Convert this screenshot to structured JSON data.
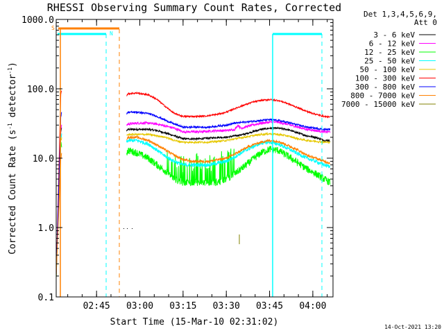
{
  "chart_data": {
    "type": "line",
    "title": "RHESSI Observing Summary Count Rates, Corrected",
    "xlabel": "Start Time (15-Mar-10 02:31:02)",
    "ylabel_main": "Corrected Count Rate (s",
    "ylabel_sup1": "-1",
    "ylabel_mid": " detector",
    "ylabel_sup2": "-1",
    "ylabel_end": ")",
    "y_scale": "log",
    "ylim": [
      0.1,
      1000
    ],
    "y_ticks": [
      {
        "value": 1000,
        "label": "1000.0"
      },
      {
        "value": 100,
        "label": "100.0"
      },
      {
        "value": 10,
        "label": "10.0"
      },
      {
        "value": 1,
        "label": "1.0"
      },
      {
        "value": 0.1,
        "label": "0.1"
      }
    ],
    "xlim_minutes": [
      0,
      96
    ],
    "x_ticks": [
      {
        "minute": 14,
        "label": "02:45"
      },
      {
        "minute": 29,
        "label": "03:00"
      },
      {
        "minute": 44,
        "label": "03:15"
      },
      {
        "minute": 59,
        "label": "03:30"
      },
      {
        "minute": 74,
        "label": "03:45"
      },
      {
        "minute": 89,
        "label": "04:00"
      }
    ],
    "legend_header": [
      "Det 1,3,4,5,6,9,",
      "Att 0"
    ],
    "legend_position": "right",
    "series": [
      {
        "name": "3 - 6 keV",
        "color": "#000000",
        "points": [
          [
            0,
            0.2
          ],
          [
            1.6,
            24
          ],
          [
            2,
            28
          ],
          [
            24.4,
            25
          ],
          [
            25,
            26
          ],
          [
            26,
            26
          ],
          [
            28,
            26
          ],
          [
            32,
            26
          ],
          [
            35,
            25
          ],
          [
            38,
            23
          ],
          [
            41,
            21
          ],
          [
            44,
            19
          ],
          [
            47,
            19
          ],
          [
            50,
            19
          ],
          [
            53,
            19.5
          ],
          [
            56,
            20
          ],
          [
            59,
            20
          ],
          [
            62,
            21
          ],
          [
            65,
            22
          ],
          [
            68,
            24
          ],
          [
            71,
            26
          ],
          [
            74,
            27
          ],
          [
            77,
            27
          ],
          [
            80,
            26
          ],
          [
            84,
            23
          ],
          [
            87,
            21
          ],
          [
            90,
            20
          ],
          [
            93,
            18
          ],
          [
            95,
            18
          ]
        ]
      },
      {
        "name": "6 - 12 keV",
        "color": "#ff00ff",
        "points": [
          [
            0,
            0.2
          ],
          [
            1.6,
            27
          ],
          [
            2,
            30
          ],
          [
            24.4,
            30
          ],
          [
            25,
            31
          ],
          [
            28,
            32
          ],
          [
            32,
            32
          ],
          [
            35,
            31
          ],
          [
            38,
            29
          ],
          [
            41,
            27
          ],
          [
            44,
            24
          ],
          [
            47,
            24
          ],
          [
            50,
            24
          ],
          [
            53,
            24.5
          ],
          [
            56,
            25
          ],
          [
            59,
            25
          ],
          [
            62,
            26
          ],
          [
            63,
            30
          ],
          [
            64,
            27
          ],
          [
            68,
            30
          ],
          [
            71,
            32
          ],
          [
            74,
            33
          ],
          [
            77,
            33
          ],
          [
            80,
            31
          ],
          [
            84,
            28
          ],
          [
            87,
            26
          ],
          [
            90,
            25
          ],
          [
            93,
            24
          ],
          [
            95,
            24
          ]
        ]
      },
      {
        "name": "12 - 25 keV",
        "color": "#00ff00",
        "points": [
          [
            0,
            0.2
          ],
          [
            1.6,
            15
          ],
          [
            2,
            16
          ],
          [
            24.4,
            12
          ],
          [
            25,
            13
          ],
          [
            28,
            12
          ],
          [
            32,
            10
          ],
          [
            35,
            8
          ],
          [
            38,
            6.5
          ],
          [
            41,
            5
          ],
          [
            44,
            4.5
          ],
          [
            47,
            4.5
          ],
          [
            50,
            4.5
          ],
          [
            53,
            4.5
          ],
          [
            56,
            4.5
          ],
          [
            59,
            5
          ],
          [
            62,
            6
          ],
          [
            65,
            7.5
          ],
          [
            68,
            9.5
          ],
          [
            71,
            12
          ],
          [
            74,
            13.5
          ],
          [
            77,
            13
          ],
          [
            80,
            11
          ],
          [
            84,
            8.5
          ],
          [
            87,
            7
          ],
          [
            90,
            6
          ],
          [
            93,
            5
          ],
          [
            95,
            4.5
          ]
        ]
      },
      {
        "name": "25 - 50 keV",
        "color": "#00ffff",
        "points": [
          [
            0,
            0.2
          ],
          [
            1.6,
            20
          ],
          [
            2,
            22
          ],
          [
            24.4,
            17
          ],
          [
            25,
            18
          ],
          [
            28,
            18
          ],
          [
            32,
            16
          ],
          [
            35,
            13
          ],
          [
            38,
            10.5
          ],
          [
            41,
            9
          ],
          [
            44,
            8
          ],
          [
            47,
            8
          ],
          [
            50,
            8
          ],
          [
            53,
            8
          ],
          [
            56,
            8.5
          ],
          [
            59,
            9
          ],
          [
            62,
            10.5
          ],
          [
            65,
            12.5
          ],
          [
            68,
            14.5
          ],
          [
            71,
            16.5
          ],
          [
            74,
            17
          ],
          [
            77,
            16
          ],
          [
            80,
            14
          ],
          [
            84,
            11.5
          ],
          [
            87,
            10
          ],
          [
            90,
            9
          ],
          [
            93,
            8
          ],
          [
            95,
            7.5
          ]
        ]
      },
      {
        "name": "50 - 100 keV",
        "color": "#e6c800",
        "points": [
          [
            0,
            0.2
          ],
          [
            1.6,
            18
          ],
          [
            2,
            20
          ],
          [
            24.4,
            21
          ],
          [
            25,
            22
          ],
          [
            28,
            22
          ],
          [
            32,
            22
          ],
          [
            35,
            21
          ],
          [
            38,
            20
          ],
          [
            41,
            18
          ],
          [
            44,
            17
          ],
          [
            47,
            17
          ],
          [
            50,
            17
          ],
          [
            53,
            17
          ],
          [
            56,
            17.5
          ],
          [
            59,
            18
          ],
          [
            62,
            19
          ],
          [
            65,
            20
          ],
          [
            68,
            21
          ],
          [
            71,
            22
          ],
          [
            74,
            22.5
          ],
          [
            77,
            22
          ],
          [
            80,
            21
          ],
          [
            84,
            19
          ],
          [
            87,
            18
          ],
          [
            90,
            17.5
          ],
          [
            93,
            17
          ],
          [
            95,
            17
          ]
        ]
      },
      {
        "name": "100 - 300 keV",
        "color": "#ff0000",
        "points": [
          [
            0,
            0.2
          ],
          [
            1.6,
            85
          ],
          [
            2,
            100
          ],
          [
            24.4,
            80
          ],
          [
            25,
            85
          ],
          [
            28,
            87
          ],
          [
            32,
            82
          ],
          [
            35,
            70
          ],
          [
            38,
            55
          ],
          [
            41,
            44
          ],
          [
            44,
            40
          ],
          [
            47,
            40
          ],
          [
            50,
            40
          ],
          [
            53,
            41
          ],
          [
            56,
            43
          ],
          [
            59,
            46
          ],
          [
            62,
            52
          ],
          [
            65,
            58
          ],
          [
            68,
            64
          ],
          [
            71,
            68
          ],
          [
            74,
            70
          ],
          [
            77,
            68
          ],
          [
            80,
            62
          ],
          [
            84,
            53
          ],
          [
            87,
            47
          ],
          [
            90,
            43
          ],
          [
            93,
            40
          ],
          [
            95,
            39
          ]
        ]
      },
      {
        "name": "300 - 800 keV",
        "color": "#0000ff",
        "points": [
          [
            0,
            0.2
          ],
          [
            1.6,
            40
          ],
          [
            2,
            48
          ],
          [
            24.4,
            44
          ],
          [
            25,
            46
          ],
          [
            28,
            46
          ],
          [
            32,
            44
          ],
          [
            35,
            40
          ],
          [
            38,
            35
          ],
          [
            41,
            31
          ],
          [
            44,
            28
          ],
          [
            47,
            28
          ],
          [
            50,
            28
          ],
          [
            53,
            28
          ],
          [
            56,
            29
          ],
          [
            59,
            30
          ],
          [
            62,
            32
          ],
          [
            65,
            33
          ],
          [
            68,
            34
          ],
          [
            71,
            35
          ],
          [
            74,
            36
          ],
          [
            77,
            35
          ],
          [
            80,
            33
          ],
          [
            84,
            30
          ],
          [
            87,
            28
          ],
          [
            90,
            27
          ],
          [
            93,
            26
          ],
          [
            95,
            26
          ]
        ]
      },
      {
        "name": "800 - 7000 keV",
        "color": "#ff8000",
        "points": [
          [
            0,
            0.2
          ],
          [
            1.6,
            10
          ],
          [
            2,
            12
          ],
          [
            24.4,
            19
          ],
          [
            25,
            20
          ],
          [
            28,
            20
          ],
          [
            32,
            18
          ],
          [
            35,
            15.5
          ],
          [
            38,
            13
          ],
          [
            41,
            11
          ],
          [
            44,
            9.5
          ],
          [
            47,
            9
          ],
          [
            50,
            9
          ],
          [
            53,
            9
          ],
          [
            56,
            9.5
          ],
          [
            59,
            10
          ],
          [
            62,
            11.5
          ],
          [
            65,
            13.5
          ],
          [
            68,
            15.5
          ],
          [
            71,
            17
          ],
          [
            74,
            18
          ],
          [
            77,
            17.5
          ],
          [
            80,
            15.5
          ],
          [
            84,
            13
          ],
          [
            87,
            11
          ],
          [
            90,
            10
          ],
          [
            93,
            9
          ],
          [
            95,
            8.5
          ]
        ]
      },
      {
        "name": "7000 - 15000 keV",
        "color": "#808000",
        "points": []
      }
    ],
    "flags": [
      {
        "name": "S",
        "color": "#ff8000"
      },
      {
        "name": "N",
        "color": "#00ffff"
      }
    ],
    "timestamp": "14-Oct-2021 13:20"
  }
}
